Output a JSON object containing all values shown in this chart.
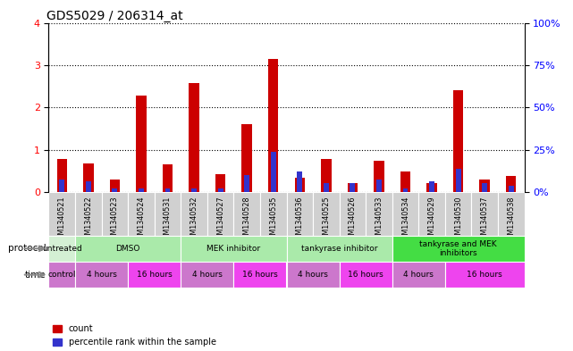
{
  "title": "GDS5029 / 206314_at",
  "samples": [
    "GSM1340521",
    "GSM1340522",
    "GSM1340523",
    "GSM1340524",
    "GSM1340531",
    "GSM1340532",
    "GSM1340527",
    "GSM1340528",
    "GSM1340535",
    "GSM1340536",
    "GSM1340525",
    "GSM1340526",
    "GSM1340533",
    "GSM1340534",
    "GSM1340529",
    "GSM1340530",
    "GSM1340537",
    "GSM1340538"
  ],
  "red_values": [
    0.78,
    0.68,
    0.3,
    2.28,
    0.65,
    2.58,
    0.42,
    1.6,
    3.15,
    0.35,
    0.78,
    0.22,
    0.75,
    0.5,
    0.22,
    2.42,
    0.3,
    0.38
  ],
  "blue_values": [
    0.3,
    0.25,
    0.1,
    0.1,
    0.1,
    0.1,
    0.1,
    0.4,
    0.95,
    0.5,
    0.22,
    0.22,
    0.3,
    0.1,
    0.25,
    0.55,
    0.22,
    0.15
  ],
  "ylim_left": [
    0,
    4
  ],
  "ylim_right": [
    0,
    100
  ],
  "yticks_left": [
    0,
    1,
    2,
    3,
    4
  ],
  "yticks_right": [
    0,
    25,
    50,
    75,
    100
  ],
  "bar_color_red": "#cc0000",
  "bar_color_blue": "#3333cc",
  "protocol_groups": [
    {
      "label": "untreated",
      "start": 0,
      "end": 1,
      "color": "#d4f0d4"
    },
    {
      "label": "DMSO",
      "start": 1,
      "end": 5,
      "color": "#aaeaaa"
    },
    {
      "label": "MEK inhibitor",
      "start": 5,
      "end": 9,
      "color": "#aaeaaa"
    },
    {
      "label": "tankyrase inhibitor",
      "start": 9,
      "end": 13,
      "color": "#aaeaaa"
    },
    {
      "label": "tankyrase and MEK\ninhibitors",
      "start": 13,
      "end": 18,
      "color": "#44dd44"
    }
  ],
  "time_groups": [
    {
      "label": "control",
      "start": 0,
      "end": 1,
      "color": "#cc77cc"
    },
    {
      "label": "4 hours",
      "start": 1,
      "end": 3,
      "color": "#cc77cc"
    },
    {
      "label": "16 hours",
      "start": 3,
      "end": 5,
      "color": "#ee44ee"
    },
    {
      "label": "4 hours",
      "start": 5,
      "end": 7,
      "color": "#cc77cc"
    },
    {
      "label": "16 hours",
      "start": 7,
      "end": 9,
      "color": "#ee44ee"
    },
    {
      "label": "4 hours",
      "start": 9,
      "end": 11,
      "color": "#cc77cc"
    },
    {
      "label": "16 hours",
      "start": 11,
      "end": 13,
      "color": "#ee44ee"
    },
    {
      "label": "4 hours",
      "start": 13,
      "end": 15,
      "color": "#cc77cc"
    },
    {
      "label": "16 hours",
      "start": 15,
      "end": 18,
      "color": "#ee44ee"
    }
  ],
  "sample_bg_color": "#d0d0d0"
}
